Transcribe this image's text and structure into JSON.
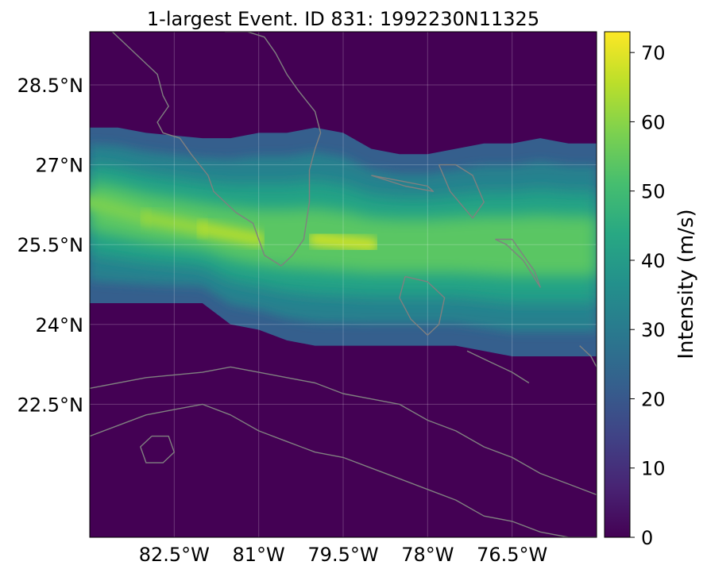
{
  "title": "1-largest Event. ID 831: 1992230N11325",
  "map": {
    "lon_range": [
      -84.0,
      -75.0
    ],
    "lat_range": [
      20.0,
      29.5
    ],
    "lon_ticks": [
      {
        "value": -82.5,
        "label": "82.5°W"
      },
      {
        "value": -81.0,
        "label": "81°W"
      },
      {
        "value": -79.5,
        "label": "79.5°W"
      },
      {
        "value": -78.0,
        "label": "78°W"
      },
      {
        "value": -76.5,
        "label": "76.5°W"
      }
    ],
    "lat_ticks": [
      {
        "value": 28.5,
        "label": "28.5°N"
      },
      {
        "value": 27.0,
        "label": "27°N"
      },
      {
        "value": 25.5,
        "label": "25.5°N"
      },
      {
        "value": 24.0,
        "label": "24°N"
      },
      {
        "value": 22.5,
        "label": "22.5°N"
      }
    ],
    "gridlines": true,
    "background_color": "#440154",
    "coastline_color": "#808080"
  },
  "chart_data": {
    "type": "heatmap",
    "title": "1-largest Event. ID 831: 1992230N11325",
    "colormap": "viridis",
    "vmin": 0,
    "vmax": 73,
    "colorbar": {
      "label": "Intensity (m/s)",
      "ticks": [
        {
          "value": 0,
          "label": "0"
        },
        {
          "value": 10,
          "label": "10"
        },
        {
          "value": 20,
          "label": "20"
        },
        {
          "value": 30,
          "label": "30"
        },
        {
          "value": 40,
          "label": "40"
        },
        {
          "value": 50,
          "label": "50"
        },
        {
          "value": 60,
          "label": "60"
        },
        {
          "value": 70,
          "label": "70"
        }
      ]
    },
    "track": {
      "lon": [
        -84.0,
        -83.0,
        -82.0,
        -81.0,
        -80.0,
        -79.0,
        -78.0,
        -77.0,
        -76.0,
        -75.0
      ],
      "lat": [
        26.3,
        26.0,
        25.8,
        25.6,
        25.6,
        25.5,
        25.5,
        25.5,
        25.5,
        25.5
      ],
      "peak_intensity": [
        56,
        60,
        62,
        66,
        68,
        66,
        68,
        72,
        70,
        65
      ]
    },
    "swath_edges": {
      "lon": [
        -84.0,
        -83.5,
        -83.0,
        -82.0,
        -81.5,
        -81.0,
        -80.5,
        -80.0,
        -79.5,
        -79.0,
        -78.5,
        -78.0,
        -77.5,
        -77.0,
        -76.5,
        -76.0,
        -75.5,
        -75.0
      ],
      "north_lat": [
        27.7,
        27.7,
        27.6,
        27.5,
        27.5,
        27.6,
        27.6,
        27.7,
        27.6,
        27.3,
        27.2,
        27.2,
        27.3,
        27.4,
        27.4,
        27.5,
        27.4,
        27.4
      ],
      "south_lat": [
        24.4,
        24.4,
        24.4,
        24.4,
        24.0,
        23.9,
        23.7,
        23.6,
        23.6,
        23.6,
        23.6,
        23.6,
        23.6,
        23.5,
        23.4,
        23.4,
        23.4,
        23.4
      ]
    }
  },
  "coastlines": [
    {
      "name": "florida-peninsula",
      "lon": [
        -83.6,
        -83.4,
        -83.1,
        -82.8,
        -82.7,
        -82.6,
        -82.8,
        -82.7,
        -82.4,
        -82.2,
        -81.9,
        -81.8,
        -81.4,
        -81.1,
        -80.9,
        -80.6,
        -80.4,
        -80.2,
        -80.1,
        -80.1,
        -80.0,
        -79.9,
        -80.0,
        -80.3,
        -80.5,
        -80.7,
        -80.9,
        -81.2,
        -81.6
      ],
      "lat": [
        29.5,
        29.3,
        29.0,
        28.7,
        28.3,
        28.1,
        27.8,
        27.6,
        27.5,
        27.2,
        26.8,
        26.5,
        26.1,
        25.9,
        25.3,
        25.1,
        25.3,
        25.6,
        26.3,
        26.9,
        27.3,
        27.6,
        28.0,
        28.4,
        28.7,
        29.1,
        29.4,
        29.5,
        29.5
      ]
    },
    {
      "name": "andros-island",
      "lon": [
        -78.4,
        -78.0,
        -77.7,
        -77.8,
        -78.0,
        -78.3,
        -78.5,
        -78.4
      ],
      "lat": [
        24.9,
        24.8,
        24.5,
        24.0,
        23.8,
        24.1,
        24.5,
        24.9
      ]
    },
    {
      "name": "grand-bahama",
      "lon": [
        -79.0,
        -78.5,
        -78.0,
        -77.9,
        -78.4,
        -79.0
      ],
      "lat": [
        26.8,
        26.7,
        26.6,
        26.5,
        26.6,
        26.8
      ]
    },
    {
      "name": "abaco",
      "lon": [
        -77.8,
        -77.5,
        -77.2,
        -77.0,
        -77.2,
        -77.6,
        -77.8
      ],
      "lat": [
        27.0,
        27.0,
        26.8,
        26.3,
        26.0,
        26.5,
        27.0
      ]
    },
    {
      "name": "eleuthera",
      "lon": [
        -76.8,
        -76.5,
        -76.3,
        -76.1,
        -76.0,
        -76.3,
        -76.6,
        -76.8
      ],
      "lat": [
        25.6,
        25.6,
        25.3,
        25.0,
        24.7,
        25.2,
        25.5,
        25.6
      ]
    },
    {
      "name": "cuba-north",
      "lon": [
        -84.0,
        -83.0,
        -82.0,
        -81.5,
        -81.0,
        -80.5,
        -80.0,
        -79.5,
        -79.0,
        -78.5,
        -78.0,
        -77.5,
        -77.0,
        -76.5,
        -76.0,
        -75.5,
        -75.0
      ],
      "lat": [
        22.8,
        23.0,
        23.1,
        23.2,
        23.1,
        23.0,
        22.9,
        22.7,
        22.6,
        22.5,
        22.2,
        22.0,
        21.7,
        21.5,
        21.2,
        21.0,
        20.8
      ]
    },
    {
      "name": "cuba-south",
      "lon": [
        -84.0,
        -83.5,
        -83.0,
        -82.5,
        -82.0,
        -81.5,
        -81.0,
        -80.5,
        -80.0,
        -79.5,
        -79.0,
        -78.5,
        -78.0,
        -77.5,
        -77.0,
        -76.5,
        -76.0,
        -75.5,
        -75.0
      ],
      "lat": [
        21.9,
        22.1,
        22.3,
        22.4,
        22.5,
        22.3,
        22.0,
        21.8,
        21.6,
        21.5,
        21.3,
        21.1,
        20.9,
        20.7,
        20.4,
        20.3,
        20.1,
        20.0,
        20.0
      ]
    },
    {
      "name": "isla-de-la-juventud",
      "lon": [
        -82.9,
        -82.6,
        -82.5,
        -82.7,
        -83.0,
        -83.1,
        -82.9
      ],
      "lat": [
        21.9,
        21.9,
        21.6,
        21.4,
        21.4,
        21.7,
        21.9
      ]
    },
    {
      "name": "cays-south-andros",
      "lon": [
        -77.3,
        -76.9,
        -76.5,
        -76.2
      ],
      "lat": [
        23.5,
        23.3,
        23.1,
        22.9
      ]
    },
    {
      "name": "long-island",
      "lon": [
        -75.3,
        -75.1,
        -75.0
      ],
      "lat": [
        23.6,
        23.4,
        23.2
      ]
    }
  ]
}
